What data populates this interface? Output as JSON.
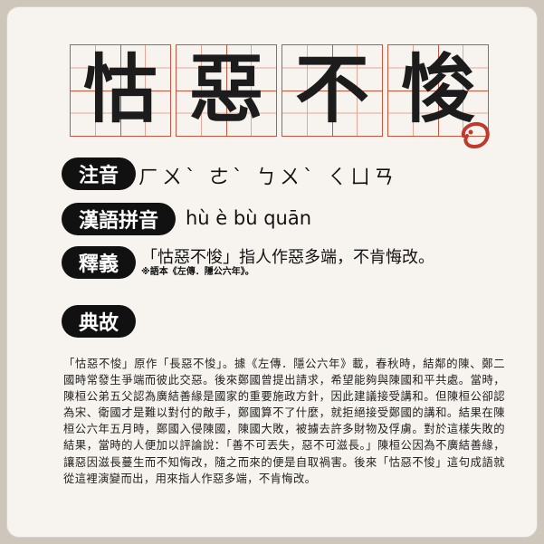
{
  "title_chars": [
    "怙",
    "惡",
    "不",
    "悛"
  ],
  "zhuyin": {
    "label": "注音",
    "value": "ㄏㄨˋ ㄜˋ ㄅㄨˋ ㄑㄩㄢ"
  },
  "pinyin": {
    "label": "漢語拼音",
    "value": "hù è bù quān"
  },
  "definition": {
    "label": "釋義",
    "value": "「怙惡不悛」指人作惡多端，不肯悔改。",
    "source": "※語本《左傳．隱公六年》。"
  },
  "allusion": {
    "label": "典故",
    "text": "「怙惡不悛」原作「長惡不悛」。據《左傳．隱公六年》載，春秋時，結鄰的陳、鄭二國時常發生爭端而彼此交惡。後來鄭國曾提出請求，希望能夠與陳國和平共處。當時，陳桓公弟五父認為廣結善緣是國家的重要施政方針，因此建議接受講和。但陳桓公卻認為宋、衛國才是難以對付的敵手，鄭國算不了什麼，就拒絕接受鄭國的講和。結果在陳桓公六年五月時，鄭國入侵陳國，陳國大敗，被擄去許多財物及俘虜。對於這樣失敗的結果，當時的人便加以評論說：「善不可丟失，惡不可滋長。」陳桓公因為不廣結善緣，讓惡因滋長蔓生而不知悔改，隨之而來的便是自取禍害。後來「怙惡不悛」這句成語就從這裡演變而出，用來指人作惡多端，不肯悔改。"
  },
  "colors": {
    "grid": "#c8553d",
    "pill": "#111111",
    "seal": "#c0392b",
    "card": "#f7f4ef"
  }
}
